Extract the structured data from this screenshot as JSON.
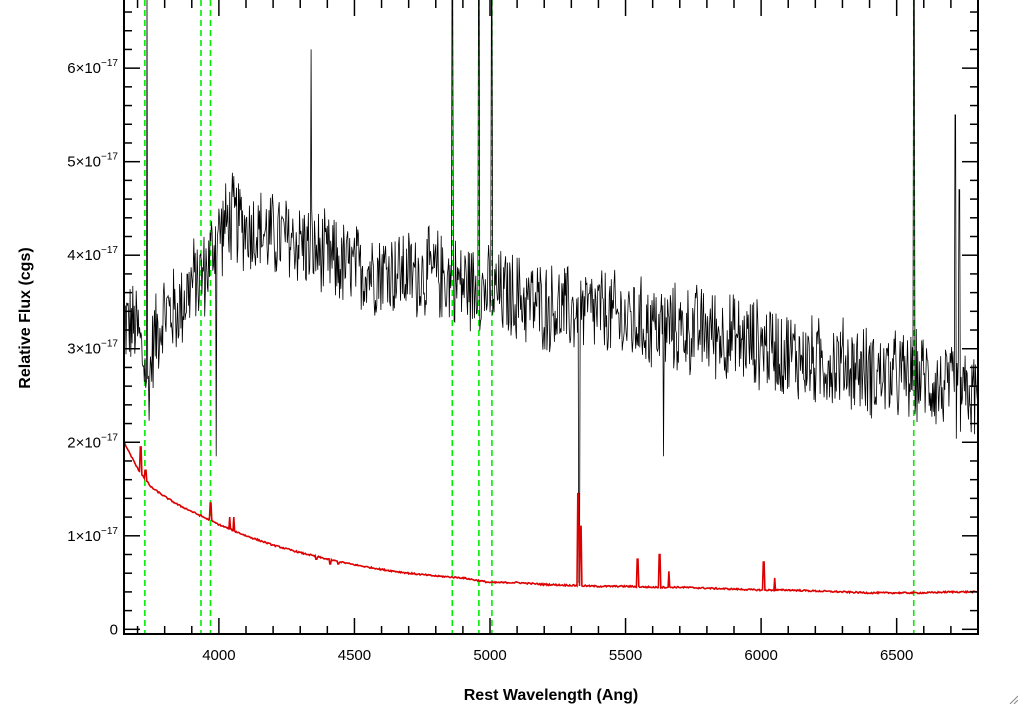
{
  "chart_data": {
    "type": "line",
    "xlabel": "Rest Wavelength (Ang)",
    "ylabel": "Relative Flux (cgs)",
    "xlim": [
      3650,
      6800
    ],
    "ylim": [
      -5e-19,
      6.75e-17
    ],
    "x_ticks": [
      {
        "value": 4000,
        "label": "4000"
      },
      {
        "value": 4500,
        "label": "4500"
      },
      {
        "value": 5000,
        "label": "5000"
      },
      {
        "value": 5500,
        "label": "5500"
      },
      {
        "value": 6000,
        "label": "6000"
      },
      {
        "value": 6500,
        "label": "6500"
      }
    ],
    "y_ticks": [
      {
        "value": 0,
        "mantissa": "0",
        "exponent": ""
      },
      {
        "value": 1e-17,
        "mantissa": "1×10",
        "exponent": "−17"
      },
      {
        "value": 2e-17,
        "mantissa": "2×10",
        "exponent": "−17"
      },
      {
        "value": 3e-17,
        "mantissa": "3×10",
        "exponent": "−17"
      },
      {
        "value": 4e-17,
        "mantissa": "4×10",
        "exponent": "−17"
      },
      {
        "value": 5e-17,
        "mantissa": "5×10",
        "exponent": "−17"
      },
      {
        "value": 6e-17,
        "mantissa": "6×10",
        "exponent": "−17"
      }
    ],
    "reference_lines": {
      "color": "#00ee00",
      "style": "dashed",
      "x": [
        3727,
        3934,
        3969,
        4861,
        4959,
        5007,
        6563
      ]
    },
    "series": [
      {
        "color": "#000000",
        "units": "1e-17",
        "x": [
          3650,
          3700,
          3740,
          3760,
          3800,
          3850,
          3900,
          3950,
          3990,
          4050,
          4100,
          4200,
          4300,
          4400,
          4500,
          4600,
          4700,
          4800,
          4900,
          5000,
          5100,
          5200,
          5300,
          5400,
          5500,
          5600,
          5700,
          5800,
          5900,
          6000,
          6100,
          6200,
          6300,
          6400,
          6500,
          6600,
          6650,
          6700,
          6750,
          6800
        ],
        "values": [
          3.3,
          3.2,
          2.6,
          3.1,
          3.4,
          3.4,
          3.7,
          3.8,
          4.2,
          4.4,
          4.3,
          4.2,
          4.15,
          3.95,
          3.85,
          3.85,
          3.8,
          3.8,
          3.7,
          3.6,
          3.55,
          3.45,
          3.4,
          3.4,
          3.3,
          3.25,
          3.2,
          3.2,
          3.1,
          3.05,
          2.95,
          2.85,
          2.85,
          2.75,
          2.7,
          2.7,
          2.6,
          2.55,
          2.5,
          2.5
        ],
        "spikes": [
          {
            "x": 3735,
            "value": 6.8
          },
          {
            "x": 3990,
            "value": 1.85
          },
          {
            "x": 4340,
            "value": 6.2
          },
          {
            "x": 4861,
            "value": 6.8
          },
          {
            "x": 4959,
            "value": 6.8
          },
          {
            "x": 5007,
            "value": 6.8
          },
          {
            "x": 5328,
            "value": 0.5
          },
          {
            "x": 5640,
            "value": 1.85
          },
          {
            "x": 6563,
            "value": 6.8
          },
          {
            "x": 6717,
            "value": 5.5
          },
          {
            "x": 6731,
            "value": 4.7
          }
        ]
      },
      {
        "color": "#dd0000",
        "units": "1e-17",
        "x": [
          3650,
          3700,
          3750,
          3800,
          3850,
          3900,
          3950,
          4000,
          4100,
          4200,
          4300,
          4400,
          4500,
          4600,
          4700,
          4800,
          4900,
          5000,
          5100,
          5200,
          5300,
          5400,
          5500,
          5600,
          5700,
          5800,
          5900,
          6000,
          6100,
          6200,
          6300,
          6400,
          6500,
          6600,
          6700,
          6800
        ],
        "values": [
          2.0,
          1.72,
          1.52,
          1.42,
          1.33,
          1.26,
          1.19,
          1.12,
          1.0,
          0.9,
          0.82,
          0.75,
          0.69,
          0.64,
          0.6,
          0.57,
          0.55,
          0.5,
          0.5,
          0.48,
          0.47,
          0.46,
          0.46,
          0.45,
          0.45,
          0.44,
          0.43,
          0.42,
          0.42,
          0.41,
          0.4,
          0.39,
          0.39,
          0.39,
          0.4,
          0.4
        ],
        "spikes": [
          {
            "x": 3712,
            "value": 1.95
          },
          {
            "x": 3730,
            "value": 1.7
          },
          {
            "x": 3970,
            "value": 1.35
          },
          {
            "x": 4040,
            "value": 1.2
          },
          {
            "x": 4055,
            "value": 1.2
          },
          {
            "x": 4310,
            "value": 0.82
          },
          {
            "x": 4330,
            "value": 0.8
          },
          {
            "x": 4360,
            "value": 0.75
          },
          {
            "x": 4410,
            "value": 0.7
          },
          {
            "x": 4440,
            "value": 0.7
          },
          {
            "x": 4580,
            "value": 0.65
          },
          {
            "x": 5325,
            "value": 1.45
          },
          {
            "x": 5335,
            "value": 1.1
          },
          {
            "x": 5545,
            "value": 0.75
          },
          {
            "x": 5625,
            "value": 0.8
          },
          {
            "x": 5660,
            "value": 0.62
          },
          {
            "x": 6010,
            "value": 0.72
          },
          {
            "x": 6050,
            "value": 0.55
          }
        ]
      }
    ]
  }
}
